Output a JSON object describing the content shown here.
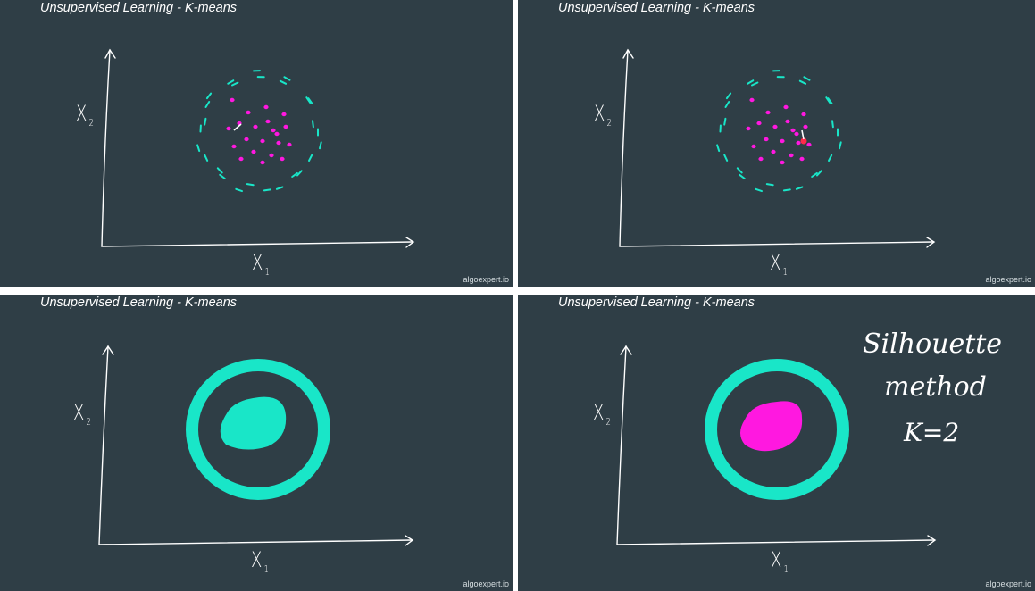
{
  "slide_title": "Unsupervised Learning - K-means",
  "watermark": "algoexpert.io",
  "axes": {
    "x_label": "X",
    "x_sub": "1",
    "y_label": "X",
    "y_sub": "2"
  },
  "annotation": {
    "line1": "Silhouette",
    "line2": "method",
    "line3": "K=2"
  },
  "colors": {
    "background": "#2f3e46",
    "outer_cluster": "#19e6c8",
    "inner_cluster": "#ff18e0",
    "ink": "#ffffff"
  },
  "panels": [
    {
      "id": "panel-1",
      "inner_color": "#ff18e0",
      "shape": "scatter",
      "centroid": "white"
    },
    {
      "id": "panel-2",
      "inner_color": "#ff18e0",
      "shape": "scatter",
      "centroid": "red"
    },
    {
      "id": "panel-3",
      "inner_color": "#19e6c8",
      "shape": "filled"
    },
    {
      "id": "panel-4",
      "inner_color": "#ff18e0",
      "shape": "filled"
    }
  ]
}
